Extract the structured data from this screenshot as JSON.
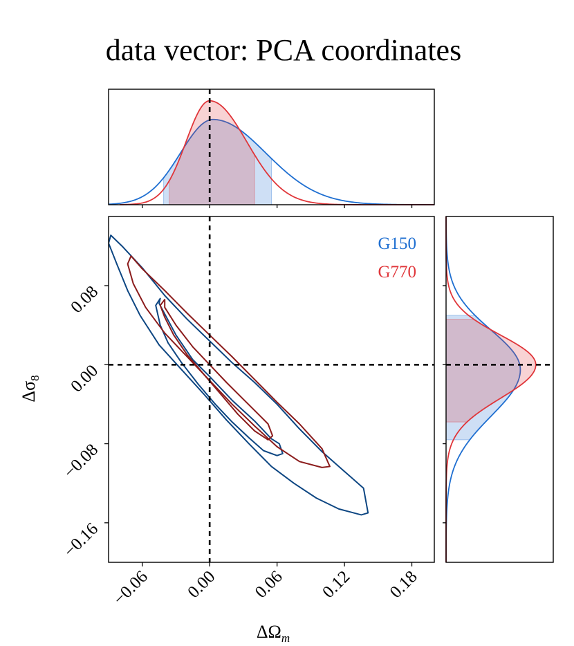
{
  "chart_data": {
    "type": "corner-contour",
    "title": "data vector: PCA coordinates",
    "xlabel": "ΔΩ",
    "xlabel_sub": "m",
    "ylabel": "Δσ",
    "ylabel_sub": "8",
    "xlim": [
      -0.09,
      0.2
    ],
    "ylim": [
      -0.2,
      0.15
    ],
    "xticks": [
      -0.06,
      0.0,
      0.06,
      0.12,
      0.18
    ],
    "xtick_labels": [
      "−0.06",
      "0.00",
      "0.06",
      "0.12",
      "0.18"
    ],
    "yticks": [
      0.08,
      0.0,
      -0.08,
      -0.16
    ],
    "ytick_labels": [
      "0.08",
      "0.00",
      "−0.08",
      "−0.16"
    ],
    "truth": {
      "omega_m": 0.0,
      "sigma_8": 0.0
    },
    "legend_position": "top-right",
    "series": [
      {
        "name": "G150",
        "color": "#1f6fd1",
        "contour_color": "#0d4682",
        "fill_color": "#bcd6f0",
        "omega_m": {
          "peak": 0.003,
          "lo": -0.041,
          "hi": 0.055,
          "sig_left": 0.029,
          "sig_right": 0.047,
          "rel_height": 0.82
        },
        "sigma_8": {
          "peak": -0.005,
          "lo": -0.076,
          "hi": 0.05,
          "sig_left": 0.047,
          "sig_right": 0.04,
          "rel_height": 0.77
        },
        "contours": [
          [
            [
              -0.045,
              0.062
            ],
            [
              -0.03,
              0.03
            ],
            [
              -0.015,
              0.005
            ],
            [
              0.0,
              -0.012
            ],
            [
              0.02,
              -0.036
            ],
            [
              0.04,
              -0.057
            ],
            [
              0.055,
              -0.075
            ],
            [
              0.062,
              -0.08
            ],
            [
              0.065,
              -0.09
            ],
            [
              0.06,
              -0.092
            ],
            [
              0.048,
              -0.087
            ],
            [
              0.035,
              -0.074
            ],
            [
              0.02,
              -0.058
            ],
            [
              0.005,
              -0.04
            ],
            [
              -0.01,
              -0.02
            ],
            [
              -0.025,
              0.002
            ],
            [
              -0.037,
              0.022
            ],
            [
              -0.044,
              0.04
            ],
            [
              -0.048,
              0.06
            ],
            [
              -0.044,
              0.067
            ],
            [
              -0.045,
              0.062
            ]
          ],
          [
            [
              -0.088,
              0.131
            ],
            [
              -0.078,
              0.12
            ],
            [
              -0.06,
              0.098
            ],
            [
              -0.04,
              0.07
            ],
            [
              -0.02,
              0.046
            ],
            [
              0.0,
              0.024
            ],
            [
              0.02,
              0.002
            ],
            [
              0.04,
              -0.018
            ],
            [
              0.06,
              -0.04
            ],
            [
              0.08,
              -0.065
            ],
            [
              0.1,
              -0.088
            ],
            [
              0.12,
              -0.108
            ],
            [
              0.137,
              -0.125
            ],
            [
              0.141,
              -0.15
            ],
            [
              0.135,
              -0.152
            ],
            [
              0.115,
              -0.146
            ],
            [
              0.095,
              -0.135
            ],
            [
              0.075,
              -0.12
            ],
            [
              0.055,
              -0.103
            ],
            [
              0.035,
              -0.08
            ],
            [
              0.015,
              -0.056
            ],
            [
              -0.005,
              -0.03
            ],
            [
              -0.025,
              -0.005
            ],
            [
              -0.045,
              0.02
            ],
            [
              -0.062,
              0.05
            ],
            [
              -0.073,
              0.075
            ],
            [
              -0.082,
              0.1
            ],
            [
              -0.09,
              0.123
            ],
            [
              -0.088,
              0.131
            ]
          ]
        ]
      },
      {
        "name": "G770",
        "color": "#e0363a",
        "contour_color": "#8b1c1c",
        "fill_color": "#f2b3b6",
        "omega_m": {
          "peak": 0.0,
          "lo": -0.036,
          "hi": 0.04,
          "sig_left": 0.021,
          "sig_right": 0.033,
          "rel_height": 1.0
        },
        "sigma_8": {
          "peak": 0.0,
          "lo": -0.058,
          "hi": 0.046,
          "sig_left": 0.034,
          "sig_right": 0.03,
          "rel_height": 0.93
        },
        "contours": [
          [
            [
              -0.04,
              0.058
            ],
            [
              -0.03,
              0.04
            ],
            [
              -0.015,
              0.018
            ],
            [
              0.0,
              0.0
            ],
            [
              0.015,
              -0.018
            ],
            [
              0.03,
              -0.035
            ],
            [
              0.045,
              -0.052
            ],
            [
              0.052,
              -0.06
            ],
            [
              0.056,
              -0.072
            ],
            [
              0.052,
              -0.076
            ],
            [
              0.04,
              -0.067
            ],
            [
              0.025,
              -0.05
            ],
            [
              0.01,
              -0.03
            ],
            [
              -0.005,
              -0.01
            ],
            [
              -0.02,
              0.01
            ],
            [
              -0.032,
              0.03
            ],
            [
              -0.04,
              0.048
            ],
            [
              -0.044,
              0.06
            ],
            [
              -0.04,
              0.066
            ],
            [
              -0.04,
              0.058
            ]
          ],
          [
            [
              -0.07,
              0.11
            ],
            [
              -0.06,
              0.097
            ],
            [
              -0.04,
              0.075
            ],
            [
              -0.02,
              0.052
            ],
            [
              0.0,
              0.03
            ],
            [
              0.02,
              0.008
            ],
            [
              0.04,
              -0.015
            ],
            [
              0.06,
              -0.038
            ],
            [
              0.08,
              -0.06
            ],
            [
              0.1,
              -0.085
            ],
            [
              0.107,
              -0.103
            ],
            [
              0.1,
              -0.104
            ],
            [
              0.08,
              -0.098
            ],
            [
              0.06,
              -0.083
            ],
            [
              0.04,
              -0.062
            ],
            [
              0.02,
              -0.04
            ],
            [
              0.0,
              -0.016
            ],
            [
              -0.02,
              0.008
            ],
            [
              -0.04,
              0.032
            ],
            [
              -0.057,
              0.058
            ],
            [
              -0.068,
              0.082
            ],
            [
              -0.073,
              0.102
            ],
            [
              -0.07,
              0.11
            ]
          ]
        ]
      }
    ]
  }
}
